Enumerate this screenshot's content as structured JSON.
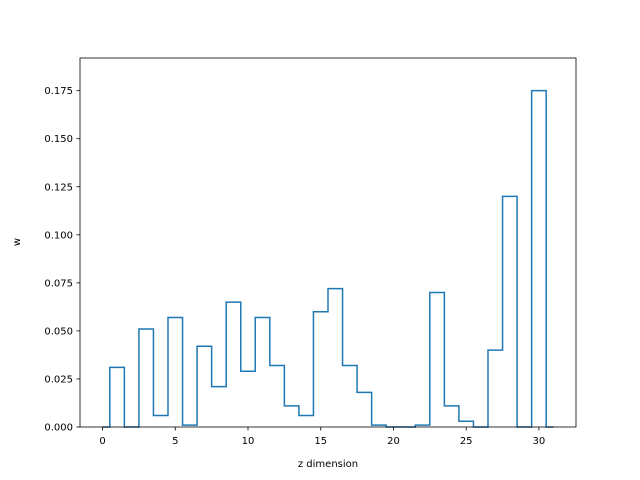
{
  "chart_data": {
    "type": "line",
    "style": "step-histogram",
    "title": "",
    "xlabel": "z dimension",
    "ylabel": "w",
    "xlim": [
      -1.55,
      32.55
    ],
    "ylim": [
      0.0,
      0.192
    ],
    "xticks": [
      0,
      5,
      10,
      15,
      20,
      25,
      30
    ],
    "yticks": [
      0.0,
      0.025,
      0.05,
      0.075,
      0.1,
      0.125,
      0.15,
      0.175
    ],
    "ytick_labels": [
      "0.000",
      "0.025",
      "0.050",
      "0.075",
      "0.100",
      "0.125",
      "0.150",
      "0.175"
    ],
    "grid": false,
    "legend": "none",
    "line_color": "#1f77b4",
    "series": [
      {
        "x": [
          0,
          1,
          2,
          3,
          4,
          5,
          6,
          7,
          8,
          9,
          10,
          11,
          12,
          13,
          14,
          15,
          16,
          17,
          18,
          19,
          20,
          21,
          22,
          23,
          24,
          25,
          26,
          27,
          28,
          29,
          30,
          31
        ],
        "values": [
          0.0,
          0.031,
          0.0,
          0.051,
          0.006,
          0.057,
          0.001,
          0.042,
          0.021,
          0.065,
          0.029,
          0.057,
          0.032,
          0.011,
          0.006,
          0.06,
          0.072,
          0.032,
          0.018,
          0.001,
          0.0,
          0.0,
          0.001,
          0.07,
          0.011,
          0.003,
          0.0,
          0.04,
          0.12,
          0.0,
          0.175,
          0.0
        ]
      }
    ]
  }
}
